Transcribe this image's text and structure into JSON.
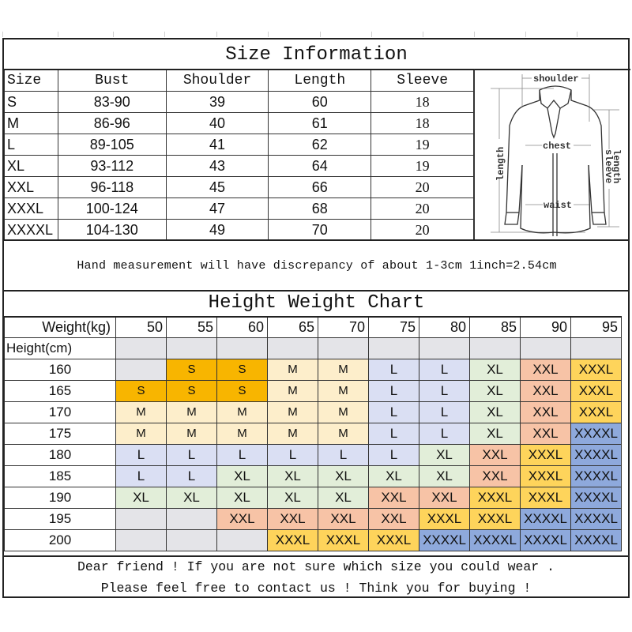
{
  "size_info": {
    "title": "Size Information",
    "headers": [
      "Size",
      "Bust",
      "Shoulder",
      "Length",
      "Sleeve"
    ],
    "rows": [
      [
        "S",
        "83-90",
        "39",
        "60",
        "18"
      ],
      [
        "M",
        "86-96",
        "40",
        "61",
        "18"
      ],
      [
        "L",
        "89-105",
        "41",
        "62",
        "19"
      ],
      [
        "XL",
        "93-112",
        "43",
        "64",
        "19"
      ],
      [
        "XXL",
        "96-118",
        "45",
        "66",
        "20"
      ],
      [
        "XXXL",
        "100-124",
        "47",
        "68",
        "20"
      ],
      [
        "XXXXL",
        "104-130",
        "49",
        "70",
        "20"
      ]
    ],
    "diagram": {
      "shoulder": "shoulder",
      "chest": "chest",
      "waist": "waist",
      "length": "length",
      "sleeve_length_1": "sleeve",
      "sleeve_length_2": "length"
    }
  },
  "note": "Hand measurement will have discrepancy of about 1-3cm  1inch=2.54cm",
  "hw_chart": {
    "title": "Height Weight Chart",
    "weight_label": "Weight(kg)",
    "height_label": "Height(cm)",
    "weights": [
      "50",
      "55",
      "60",
      "65",
      "70",
      "75",
      "80",
      "85",
      "90",
      "95"
    ],
    "rows": [
      {
        "height": "160",
        "sizes": [
          "",
          "S",
          "S",
          "M",
          "M",
          "L",
          "L",
          "XL",
          "XXL",
          "XXXL"
        ]
      },
      {
        "height": "165",
        "sizes": [
          "S",
          "S",
          "S",
          "M",
          "M",
          "L",
          "L",
          "XL",
          "XXL",
          "XXXL"
        ]
      },
      {
        "height": "170",
        "sizes": [
          "M",
          "M",
          "M",
          "M",
          "M",
          "L",
          "L",
          "XL",
          "XXL",
          "XXXL"
        ]
      },
      {
        "height": "175",
        "sizes": [
          "M",
          "M",
          "M",
          "M",
          "M",
          "L",
          "L",
          "XL",
          "XXL",
          "XXXXL"
        ]
      },
      {
        "height": "180",
        "sizes": [
          "L",
          "L",
          "L",
          "L",
          "L",
          "L",
          "XL",
          "XXL",
          "XXXL",
          "XXXXL"
        ]
      },
      {
        "height": "185",
        "sizes": [
          "L",
          "L",
          "XL",
          "XL",
          "XL",
          "XL",
          "XL",
          "XXL",
          "XXXL",
          "XXXXL"
        ]
      },
      {
        "height": "190",
        "sizes": [
          "XL",
          "XL",
          "XL",
          "XL",
          "XL",
          "XXL",
          "XXL",
          "XXXL",
          "XXXL",
          "XXXXL"
        ]
      },
      {
        "height": "195",
        "sizes": [
          "",
          "",
          "XXL",
          "XXL",
          "XXL",
          "XXL",
          "XXXL",
          "XXXL",
          "XXXXL",
          "XXXXL"
        ]
      },
      {
        "height": "200",
        "sizes": [
          "",
          "",
          "",
          "XXXL",
          "XXXL",
          "XXXL",
          "XXXXL",
          "XXXXL",
          "XXXXL",
          "XXXXL"
        ]
      }
    ],
    "colors": {
      "empty": "#e4e4e8",
      "S": "#f8b500",
      "M": "#fdeecb",
      "L": "#dadff3",
      "XL": "#e2eed9",
      "XXL": "#f7c3a6",
      "XXXL": "#fed45b",
      "XXXXL": "#8ea9dc"
    }
  },
  "footer": {
    "line1": "Dear friend ! If you are not sure which size you could wear .",
    "line2": "Please feel free to contact us ! Think you for buying !"
  }
}
